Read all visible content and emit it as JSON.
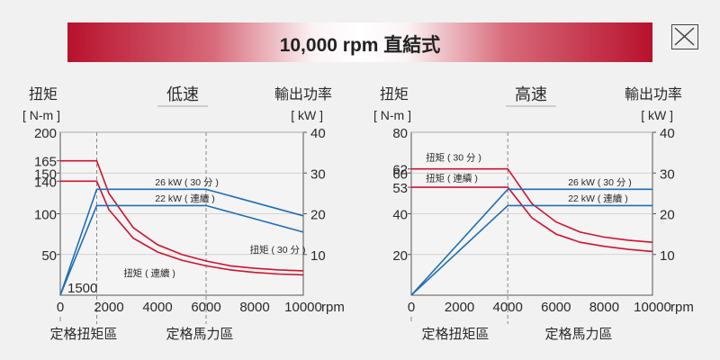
{
  "header": {
    "title": "10,000 rpm 直結式"
  },
  "colors": {
    "torque": "#d0122f",
    "power": "#1f6fb5",
    "axis": "#555555",
    "text": "#2a2a2a",
    "guide": "#888888"
  },
  "icons": {
    "close": "close-icon"
  },
  "chart_data": [
    {
      "type": "line",
      "title": "低速",
      "ylabel_left": "扭矩",
      "ylabel_left_unit": "[ N-m ]",
      "ylabel_right": "輸出功率",
      "ylabel_right_unit": "[ kW ]",
      "x_unit": "rpm",
      "xlim": [
        0,
        10000
      ],
      "ylim_left": [
        0,
        200
      ],
      "ylim_right": [
        0,
        40
      ],
      "x_ticks": [
        "0",
        "2000",
        "4000",
        "6000",
        "8000",
        "10000"
      ],
      "y_left_ticks": [
        {
          "value": 200,
          "label": "200"
        },
        {
          "value": 165,
          "label": "165"
        },
        {
          "value": 150,
          "label": "150"
        },
        {
          "value": 140,
          "label": "140"
        },
        {
          "value": 100,
          "label": "100"
        },
        {
          "value": 50,
          "label": "50"
        }
      ],
      "y_right_ticks": [
        {
          "value": 40,
          "label": "40"
        },
        {
          "value": 30,
          "label": "30"
        },
        {
          "value": 20,
          "label": "20"
        },
        {
          "value": 10,
          "label": "10"
        }
      ],
      "guide_x": [
        1500,
        6000
      ],
      "regions": [
        "定格扭矩區",
        "定格馬力區"
      ],
      "start_label": "1500",
      "series": [
        {
          "name": "扭矩 ( 30 分 )",
          "axis": "left",
          "color": "torque",
          "x": [
            0,
            1500,
            2000,
            3000,
            4000,
            5000,
            6000,
            7000,
            8000,
            9000,
            10000
          ],
          "y": [
            165,
            165,
            125,
            83,
            62,
            50,
            42,
            36,
            33,
            31,
            30
          ]
        },
        {
          "name": "扭矩 ( 連續 )",
          "axis": "left",
          "color": "torque",
          "x": [
            0,
            1500,
            2000,
            3000,
            4000,
            5000,
            6000,
            7000,
            8000,
            9000,
            10000
          ],
          "y": [
            140,
            140,
            105,
            70,
            53,
            43,
            36,
            31,
            28,
            26,
            25
          ]
        },
        {
          "name": "26 kW ( 30 分 )",
          "axis": "right",
          "color": "power",
          "x": [
            0,
            1500,
            6000,
            10000
          ],
          "y": [
            0,
            26,
            26,
            19.5
          ]
        },
        {
          "name": "22 kW ( 連續 )",
          "axis": "right",
          "color": "power",
          "x": [
            0,
            1500,
            6000,
            10000
          ],
          "y": [
            0,
            22,
            22,
            15.5
          ]
        }
      ],
      "labels": [
        {
          "text": "26 kW ( 30 分 )",
          "x": 3900,
          "y": 27,
          "axis": "right"
        },
        {
          "text": "22 kW ( 連續 )",
          "x": 3900,
          "y": 23,
          "axis": "right"
        },
        {
          "text": "扭矩 ( 30 分 )",
          "x": 7800,
          "y": 52,
          "axis": "left"
        },
        {
          "text": "扭矩 ( 連續 )",
          "x": 2600,
          "y": 23,
          "axis": "left"
        }
      ]
    },
    {
      "type": "line",
      "title": "高速",
      "ylabel_left": "扭矩",
      "ylabel_left_unit": "[ N-m ]",
      "ylabel_right": "輸出功率",
      "ylabel_right_unit": "[ kW ]",
      "x_unit": "rpm",
      "xlim": [
        0,
        10000
      ],
      "ylim_left": [
        0,
        80
      ],
      "ylim_right": [
        0,
        40
      ],
      "x_ticks": [
        "0",
        "2000",
        "4000",
        "6000",
        "8000",
        "10000"
      ],
      "y_left_ticks": [
        {
          "value": 80,
          "label": "80"
        },
        {
          "value": 62,
          "label": "62"
        },
        {
          "value": 60,
          "label": "60"
        },
        {
          "value": 53,
          "label": "53"
        },
        {
          "value": 40,
          "label": "40"
        },
        {
          "value": 20,
          "label": "20"
        }
      ],
      "y_right_ticks": [
        {
          "value": 40,
          "label": "40"
        },
        {
          "value": 30,
          "label": "30"
        },
        {
          "value": 20,
          "label": "20"
        },
        {
          "value": 10,
          "label": "10"
        }
      ],
      "guide_x": [
        4000
      ],
      "regions": [
        "定格扭矩區",
        "定格馬力區"
      ],
      "start_label": "",
      "series": [
        {
          "name": "扭矩 ( 30 分 )",
          "axis": "left",
          "color": "torque",
          "x": [
            0,
            4000,
            5000,
            6000,
            7000,
            8000,
            9000,
            10000
          ],
          "y": [
            62,
            62,
            45,
            36,
            31,
            28.5,
            27,
            26
          ]
        },
        {
          "name": "扭矩 ( 連續 )",
          "axis": "left",
          "color": "torque",
          "x": [
            0,
            4000,
            5000,
            6000,
            7000,
            8000,
            9000,
            10000
          ],
          "y": [
            53,
            53,
            38,
            30,
            26,
            24,
            22.5,
            21.5
          ]
        },
        {
          "name": "26 kW ( 30 分 )",
          "axis": "right",
          "color": "power",
          "x": [
            0,
            4000,
            10000
          ],
          "y": [
            0,
            26,
            26
          ]
        },
        {
          "name": "22 kW ( 連續 )",
          "axis": "right",
          "color": "power",
          "x": [
            0,
            4000,
            10000
          ],
          "y": [
            0,
            22,
            22
          ]
        }
      ],
      "labels": [
        {
          "text": "扭矩 ( 30 分 )",
          "x": 600,
          "y": 66,
          "axis": "left"
        },
        {
          "text": "扭矩 ( 連續 )",
          "x": 600,
          "y": 56,
          "axis": "left"
        },
        {
          "text": "26 kW ( 30 分 )",
          "x": 6500,
          "y": 27,
          "axis": "right"
        },
        {
          "text": "22 kW ( 連續 )",
          "x": 6500,
          "y": 23,
          "axis": "right"
        }
      ]
    }
  ]
}
